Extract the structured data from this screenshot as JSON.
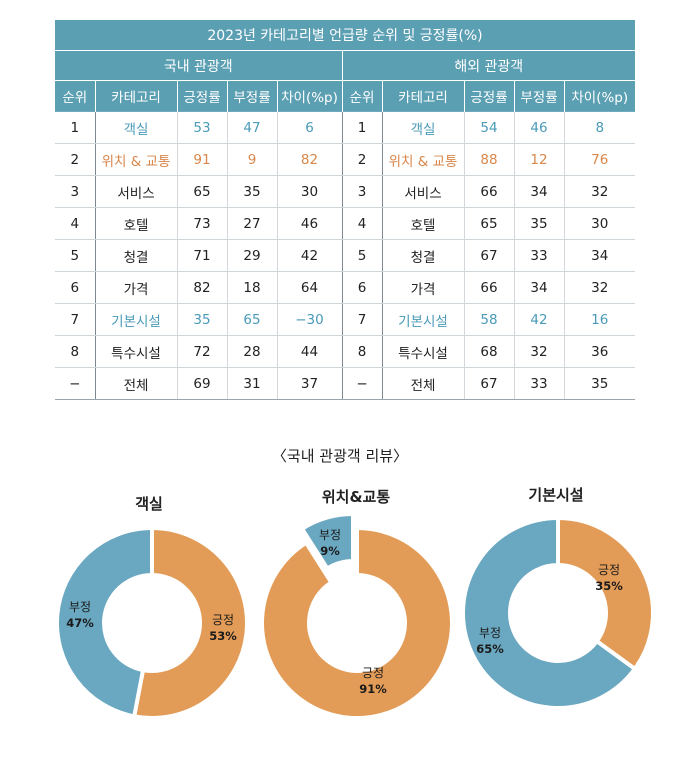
{
  "table": {
    "title": "2023년 카테고리별 언급량 순위 및 긍정률(%)",
    "groups": [
      "국내 관광객",
      "해외 관광객"
    ],
    "headers": [
      "순위",
      "카테고리",
      "긍정률",
      "부정률",
      "차이(%p)"
    ],
    "rows": [
      {
        "rank": "1",
        "tone": "blue",
        "domestic": {
          "category": "객실",
          "pos": "53",
          "neg": "47",
          "diff": "6"
        },
        "foreign": {
          "category": "객실",
          "pos": "54",
          "neg": "46",
          "diff": "8"
        }
      },
      {
        "rank": "2",
        "tone": "orange",
        "domestic": {
          "category": "위치 & 교통",
          "pos": "91",
          "neg": "9",
          "diff": "82"
        },
        "foreign": {
          "category": "위치 & 교통",
          "pos": "88",
          "neg": "12",
          "diff": "76"
        }
      },
      {
        "rank": "3",
        "tone": "",
        "domestic": {
          "category": "서비스",
          "pos": "65",
          "neg": "35",
          "diff": "30"
        },
        "foreign": {
          "category": "서비스",
          "pos": "66",
          "neg": "34",
          "diff": "32"
        }
      },
      {
        "rank": "4",
        "tone": "",
        "domestic": {
          "category": "호텔",
          "pos": "73",
          "neg": "27",
          "diff": "46"
        },
        "foreign": {
          "category": "호텔",
          "pos": "65",
          "neg": "35",
          "diff": "30"
        }
      },
      {
        "rank": "5",
        "tone": "",
        "domestic": {
          "category": "청결",
          "pos": "71",
          "neg": "29",
          "diff": "42"
        },
        "foreign": {
          "category": "청결",
          "pos": "67",
          "neg": "33",
          "diff": "34"
        }
      },
      {
        "rank": "6",
        "tone": "",
        "domestic": {
          "category": "가격",
          "pos": "82",
          "neg": "18",
          "diff": "64"
        },
        "foreign": {
          "category": "가격",
          "pos": "66",
          "neg": "34",
          "diff": "32"
        }
      },
      {
        "rank": "7",
        "tone": "blue",
        "domestic": {
          "category": "기본시설",
          "pos": "35",
          "neg": "65",
          "diff": "−30"
        },
        "foreign": {
          "category": "기본시설",
          "pos": "58",
          "neg": "42",
          "diff": "16"
        }
      },
      {
        "rank": "8",
        "tone": "",
        "domestic": {
          "category": "특수시설",
          "pos": "72",
          "neg": "28",
          "diff": "44"
        },
        "foreign": {
          "category": "특수시설",
          "pos": "68",
          "neg": "32",
          "diff": "36"
        }
      },
      {
        "rank": "−",
        "tone": "",
        "domestic": {
          "category": "전체",
          "pos": "69",
          "neg": "31",
          "diff": "37"
        },
        "foreign": {
          "category": "전체",
          "pos": "67",
          "neg": "33",
          "diff": "35"
        }
      }
    ]
  },
  "chart_data": {
    "type": "pie",
    "title": "〈국내 관광객 리뷰〉",
    "colors": {
      "positive": "#e39c57",
      "negative": "#6aa7c0"
    },
    "charts": [
      {
        "title": "객실",
        "slices": [
          {
            "label": "긍정",
            "value": 53,
            "text": "53%"
          },
          {
            "label": "부정",
            "value": 47,
            "text": "47%"
          }
        ]
      },
      {
        "title": "위치&교통",
        "slices": [
          {
            "label": "긍정",
            "value": 91,
            "text": "91%"
          },
          {
            "label": "부정",
            "value": 9,
            "text": "9%"
          }
        ]
      },
      {
        "title": "기본시설",
        "slices": [
          {
            "label": "긍정",
            "value": 35,
            "text": "35%"
          },
          {
            "label": "부정",
            "value": 65,
            "text": "65%"
          }
        ]
      }
    ]
  }
}
